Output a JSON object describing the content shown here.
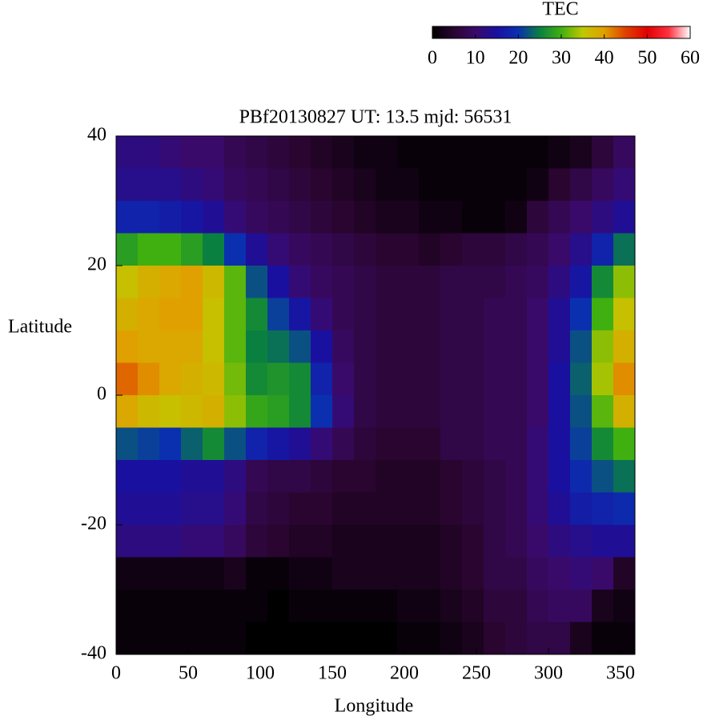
{
  "chart_data": {
    "type": "heatmap",
    "title": "PBf20130827  UT: 13.5  mjd: 56531",
    "xlabel": "Longitude",
    "ylabel": "Latitude",
    "colorbar_label": "TEC",
    "x": [
      7.5,
      22.5,
      37.5,
      52.5,
      67.5,
      82.5,
      97.5,
      112.5,
      127.5,
      142.5,
      157.5,
      172.5,
      187.5,
      202.5,
      217.5,
      232.5,
      247.5,
      262.5,
      277.5,
      292.5,
      307.5,
      322.5,
      337.5,
      352.5
    ],
    "y": [
      37.5,
      32.5,
      27.5,
      22.5,
      17.5,
      12.5,
      7.5,
      2.5,
      -2.5,
      -7.5,
      -12.5,
      -17.5,
      -22.5,
      -27.5,
      -32.5,
      -37.5
    ],
    "z": [
      [
        12,
        12,
        11,
        10,
        10,
        8,
        7,
        6,
        5,
        4,
        3,
        2,
        2,
        1,
        1,
        1,
        1,
        1,
        1,
        1,
        2,
        3,
        6,
        9
      ],
      [
        13,
        13,
        13,
        12,
        11,
        9,
        8,
        7,
        6,
        5,
        4,
        3,
        2,
        2,
        1,
        1,
        1,
        1,
        1,
        2,
        5,
        7,
        9,
        11
      ],
      [
        18,
        18,
        17,
        16,
        14,
        11,
        9,
        8,
        7,
        6,
        5,
        4,
        3,
        3,
        2,
        2,
        1,
        1,
        2,
        6,
        8,
        10,
        12,
        14
      ],
      [
        28,
        30,
        30,
        28,
        25,
        20,
        14,
        11,
        9,
        8,
        7,
        6,
        5,
        5,
        4,
        5,
        6,
        6,
        7,
        8,
        10,
        13,
        18,
        24
      ],
      [
        36,
        38,
        39,
        40,
        37,
        31,
        22,
        15,
        11,
        9,
        8,
        7,
        6,
        6,
        6,
        7,
        7,
        7,
        8,
        9,
        12,
        16,
        26,
        33
      ],
      [
        38,
        39,
        40,
        40,
        36,
        31,
        26,
        21,
        16,
        11,
        8,
        7,
        6,
        6,
        6,
        7,
        7,
        8,
        8,
        10,
        14,
        20,
        30,
        36
      ],
      [
        40,
        39,
        39,
        39,
        36,
        31,
        25,
        24,
        22,
        15,
        9,
        7,
        6,
        6,
        6,
        7,
        7,
        8,
        8,
        10,
        14,
        22,
        33,
        38
      ],
      [
        43,
        41,
        39,
        38,
        37,
        32,
        26,
        27,
        26,
        18,
        10,
        7,
        6,
        6,
        6,
        7,
        7,
        8,
        8,
        10,
        15,
        23,
        34,
        41
      ],
      [
        39,
        37,
        36,
        37,
        38,
        33,
        29,
        28,
        26,
        20,
        11,
        7,
        6,
        6,
        6,
        7,
        7,
        8,
        8,
        10,
        15,
        22,
        31,
        38
      ],
      [
        22,
        21,
        20,
        23,
        26,
        22,
        18,
        16,
        14,
        11,
        8,
        6,
        5,
        5,
        5,
        7,
        7,
        8,
        8,
        11,
        15,
        21,
        26,
        30
      ],
      [
        15,
        15,
        15,
        14,
        14,
        12,
        8,
        7,
        7,
        6,
        5,
        5,
        4,
        4,
        4,
        5,
        6,
        7,
        8,
        11,
        15,
        19,
        22,
        24
      ],
      [
        14,
        14,
        14,
        13,
        13,
        11,
        7,
        6,
        5,
        5,
        4,
        4,
        4,
        4,
        4,
        5,
        6,
        7,
        8,
        11,
        14,
        17,
        18,
        19
      ],
      [
        12,
        12,
        12,
        11,
        11,
        9,
        6,
        5,
        4,
        4,
        3,
        3,
        3,
        3,
        3,
        4,
        5,
        7,
        8,
        10,
        12,
        13,
        14,
        14
      ],
      [
        2,
        2,
        2,
        2,
        2,
        3,
        1,
        1,
        2,
        2,
        3,
        3,
        3,
        3,
        3,
        4,
        5,
        7,
        7,
        9,
        10,
        11,
        10,
        4
      ],
      [
        1,
        1,
        1,
        1,
        1,
        1,
        1,
        0,
        1,
        1,
        1,
        1,
        1,
        2,
        2,
        3,
        4,
        6,
        6,
        8,
        9,
        9,
        3,
        2
      ],
      [
        1,
        1,
        1,
        1,
        1,
        1,
        0,
        0,
        0,
        0,
        0,
        0,
        0,
        1,
        1,
        2,
        3,
        5,
        6,
        7,
        7,
        3,
        1,
        1
      ]
    ],
    "xlim": [
      0,
      360
    ],
    "xticks": [
      0,
      50,
      100,
      150,
      200,
      250,
      300,
      350
    ],
    "ylim": [
      -40,
      40
    ],
    "yticks": [
      -40,
      -20,
      0,
      20,
      40
    ],
    "clim": [
      0,
      60
    ],
    "cticks": [
      0,
      10,
      20,
      30,
      40,
      50,
      60
    ],
    "colormap": [
      "#000000",
      "#2a0530",
      "#3a0a6a",
      "#1a10a0",
      "#0a30b0",
      "#0a8040",
      "#40b010",
      "#c0c800",
      "#e0a000",
      "#e04000",
      "#e00000",
      "#ff3040",
      "#ffffff"
    ]
  }
}
